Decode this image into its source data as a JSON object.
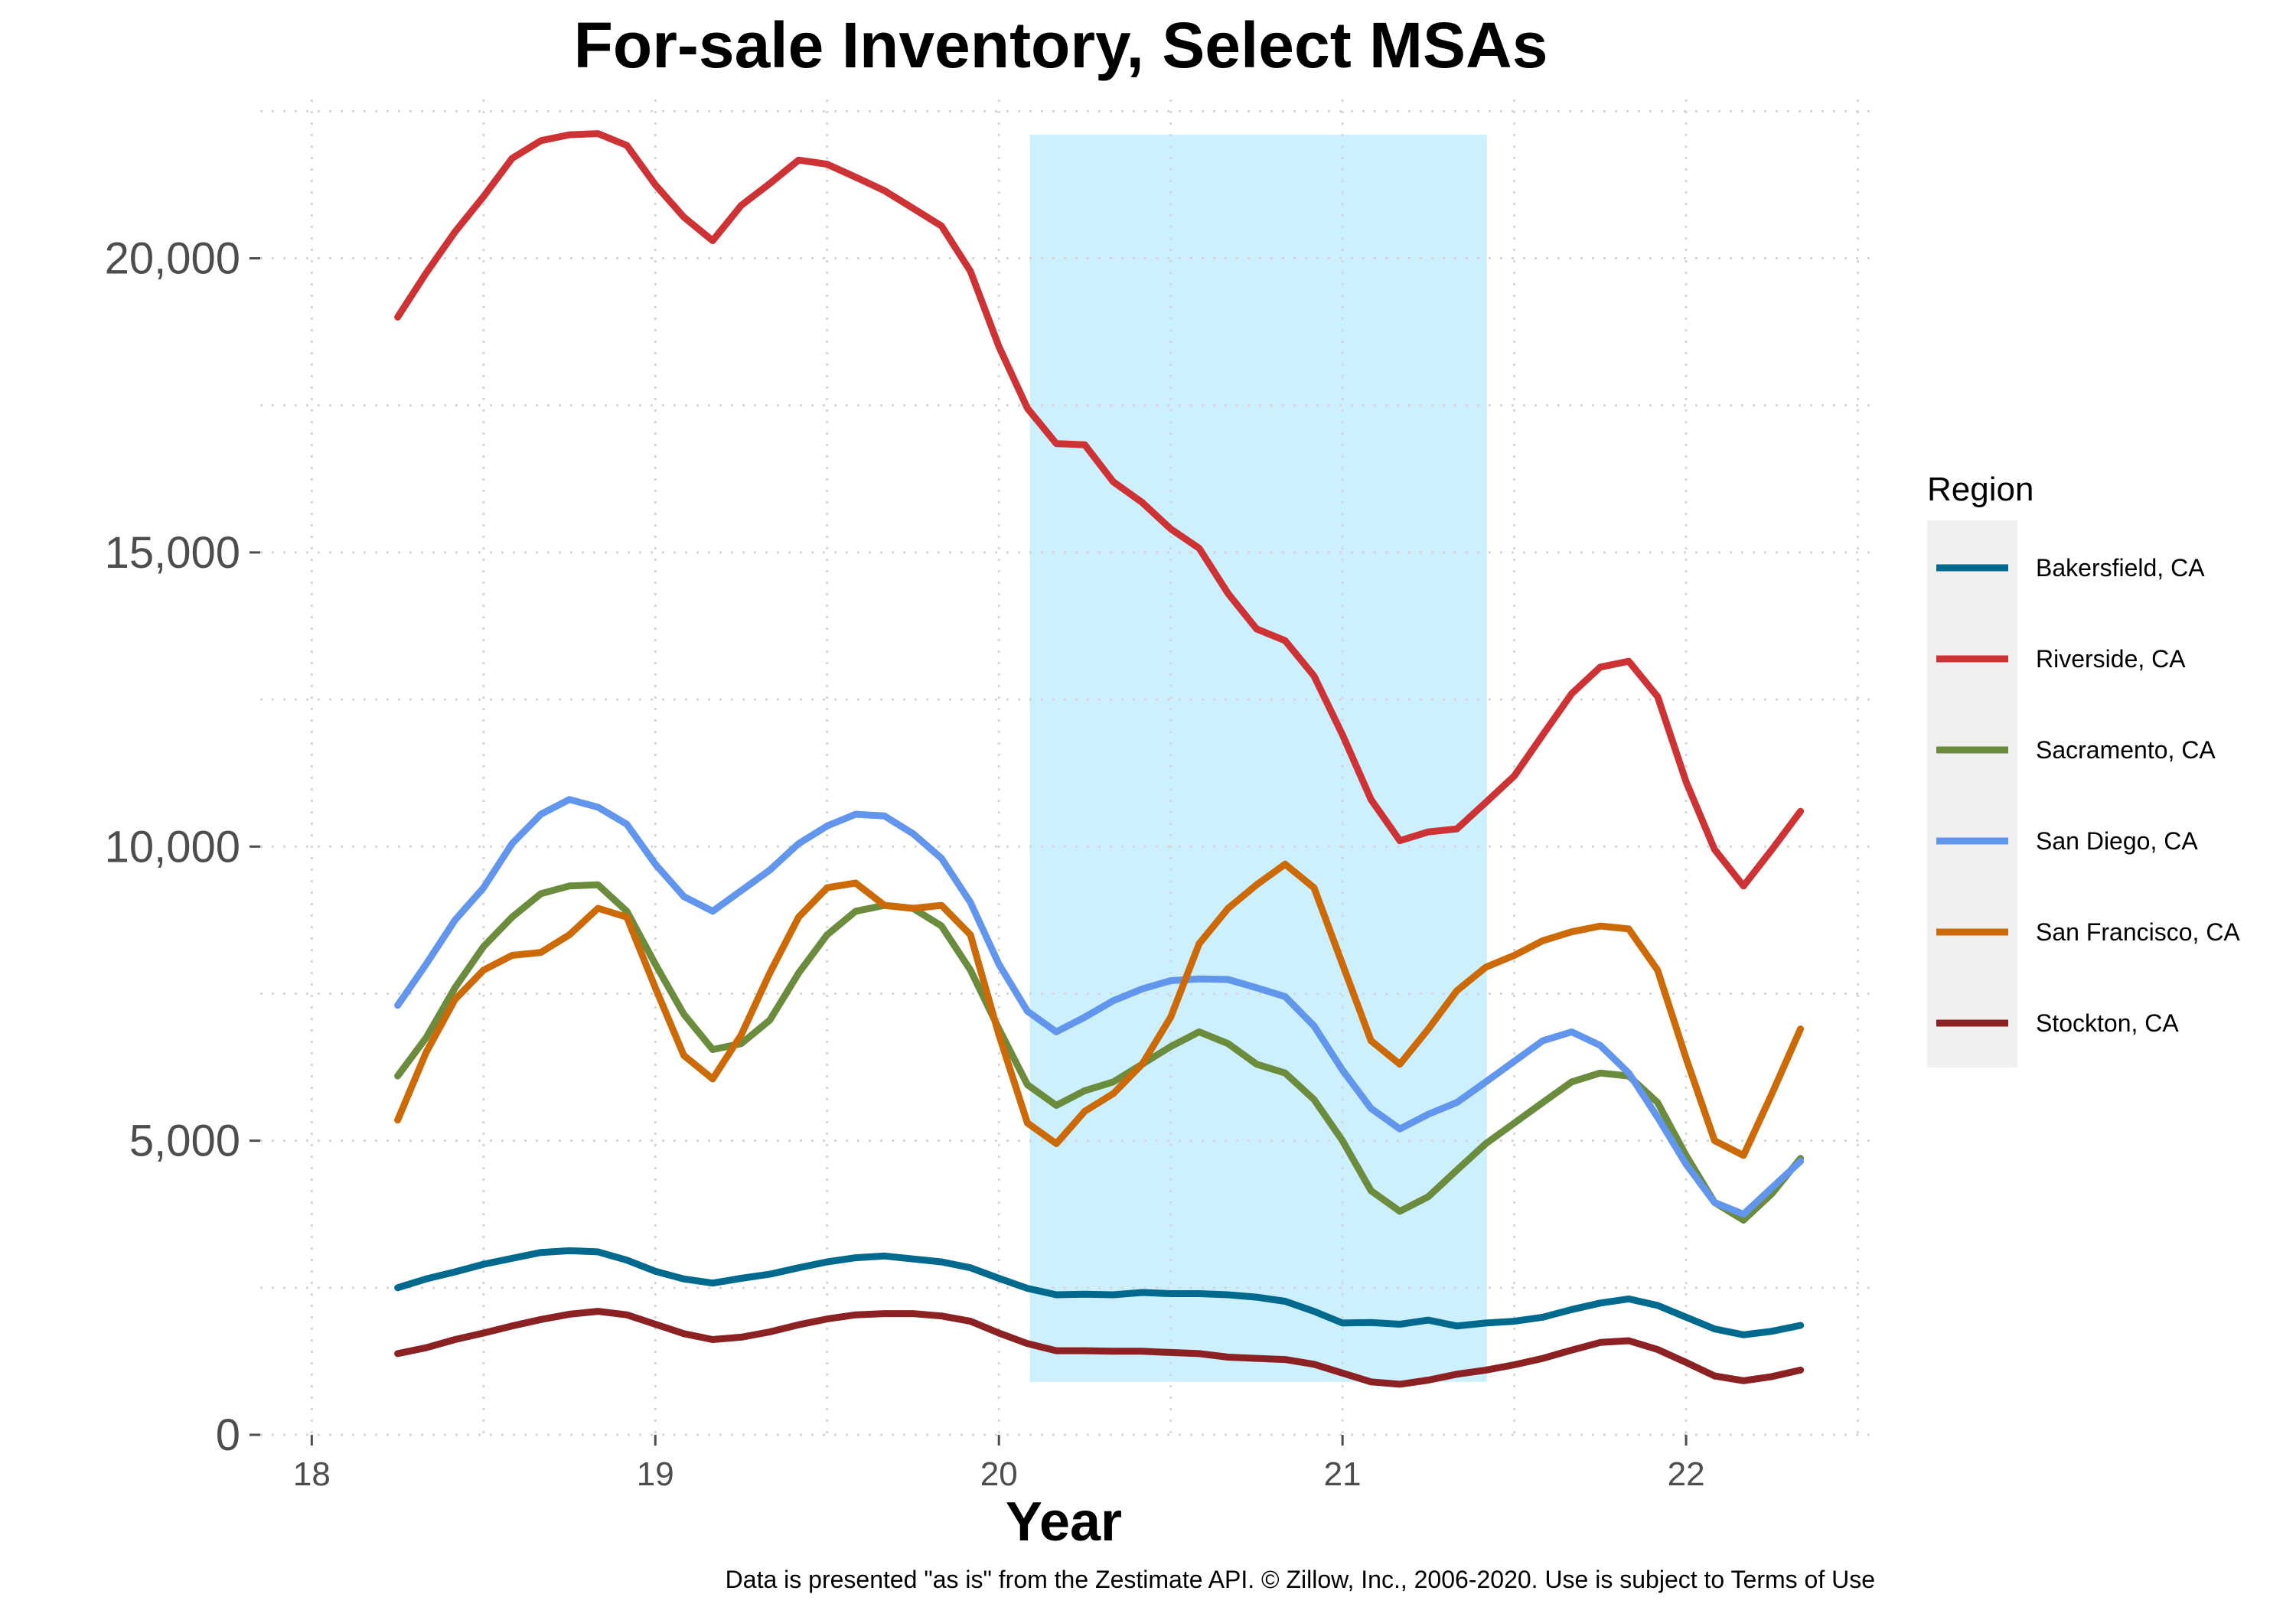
{
  "chart_data": {
    "type": "line",
    "title": "For-sale Inventory, Select MSAs",
    "xlabel": "Year",
    "ylabel": "",
    "xlim": [
      17.85,
      22.55
    ],
    "ylim": [
      0,
      22700
    ],
    "x_ticks": [
      18,
      19,
      20,
      21,
      22
    ],
    "x_tick_labels": [
      "18",
      "19",
      "20",
      "21",
      "22"
    ],
    "y_ticks": [
      0,
      5000,
      10000,
      15000,
      20000
    ],
    "y_tick_labels": [
      "0",
      "5,000",
      "10,000",
      "15,000",
      "20,000"
    ],
    "grid": true,
    "legend": {
      "title": "Region",
      "position": "right"
    },
    "shaded_region": {
      "x_start": 20.09,
      "x_end": 21.42,
      "y_start": 900,
      "y_end": 22100,
      "color": "#ccf0fd"
    },
    "caption": "Data is presented \"as is\" from the Zestimate API. © Zillow, Inc., 2006-2020. Use is subject to Terms of Use",
    "x": [
      18.25,
      18.333,
      18.417,
      18.5,
      18.583,
      18.667,
      18.75,
      18.833,
      18.917,
      19.0,
      19.083,
      19.167,
      19.25,
      19.333,
      19.417,
      19.5,
      19.583,
      19.667,
      19.75,
      19.833,
      19.917,
      20.0,
      20.083,
      20.167,
      20.25,
      20.333,
      20.417,
      20.5,
      20.583,
      20.667,
      20.75,
      20.833,
      20.917,
      21.0,
      21.083,
      21.167,
      21.25,
      21.333,
      21.417,
      21.5,
      21.583,
      21.667,
      21.75,
      21.833,
      21.917,
      22.0,
      22.083,
      22.167,
      22.25,
      22.333
    ],
    "series": [
      {
        "name": "Bakersfield, CA",
        "color": "#006a8e",
        "values": [
          2500,
          2650,
          2770,
          2900,
          3000,
          3100,
          3130,
          3110,
          2970,
          2780,
          2650,
          2580,
          2660,
          2730,
          2840,
          2940,
          3010,
          3040,
          2990,
          2940,
          2840,
          2660,
          2490,
          2380,
          2390,
          2380,
          2420,
          2400,
          2400,
          2380,
          2340,
          2270,
          2100,
          1900,
          1910,
          1880,
          1950,
          1850,
          1900,
          1930,
          2000,
          2130,
          2240,
          2310,
          2200,
          2000,
          1800,
          1700,
          1760,
          1860
        ]
      },
      {
        "name": "Riverside, CA",
        "color": "#cd3334",
        "values": [
          19000,
          19750,
          20450,
          21050,
          21700,
          22000,
          22100,
          22120,
          21920,
          21250,
          20700,
          20300,
          20900,
          21270,
          21670,
          21600,
          21380,
          21150,
          20850,
          20550,
          19780,
          18500,
          17450,
          16850,
          16830,
          16200,
          15850,
          15400,
          15070,
          14300,
          13700,
          13500,
          12900,
          11900,
          10800,
          10100,
          10250,
          10300,
          10750,
          11200,
          11900,
          12600,
          13050,
          13150,
          12550,
          11100,
          9950,
          9330,
          9950,
          10600
        ]
      },
      {
        "name": "Sacramento, CA",
        "color": "#6c8c3d",
        "values": [
          6100,
          6750,
          7600,
          8300,
          8800,
          9200,
          9330,
          9350,
          8900,
          8000,
          7150,
          6550,
          6650,
          7050,
          7850,
          8500,
          8900,
          9000,
          8950,
          8650,
          7900,
          6900,
          5950,
          5600,
          5850,
          6000,
          6300,
          6600,
          6850,
          6650,
          6300,
          6150,
          5700,
          5000,
          4150,
          3800,
          4050,
          4500,
          4950,
          5300,
          5650,
          6000,
          6150,
          6100,
          5650,
          4750,
          3950,
          3650,
          4100,
          4700
        ]
      },
      {
        "name": "San Diego, CA",
        "color": "#6295ec",
        "values": [
          7300,
          8000,
          8750,
          9300,
          10050,
          10550,
          10800,
          10670,
          10380,
          9700,
          9150,
          8900,
          9250,
          9600,
          10050,
          10350,
          10550,
          10520,
          10220,
          9800,
          9050,
          8000,
          7200,
          6850,
          7100,
          7380,
          7580,
          7720,
          7750,
          7740,
          7600,
          7450,
          6950,
          6200,
          5550,
          5200,
          5450,
          5650,
          6000,
          6350,
          6700,
          6850,
          6620,
          6150,
          5400,
          4600,
          3950,
          3750,
          4200,
          4650
        ]
      },
      {
        "name": "San Francisco, CA",
        "color": "#cc6a08",
        "values": [
          5350,
          6500,
          7400,
          7900,
          8150,
          8200,
          8500,
          8950,
          8800,
          7600,
          6450,
          6050,
          6800,
          7850,
          8800,
          9300,
          9380,
          9000,
          8950,
          9000,
          8500,
          6800,
          5300,
          4950,
          5500,
          5800,
          6300,
          7100,
          8350,
          8950,
          9350,
          9700,
          9300,
          8000,
          6700,
          6300,
          6900,
          7550,
          7950,
          8150,
          8400,
          8550,
          8650,
          8600,
          7900,
          6400,
          5000,
          4750,
          5800,
          6900
        ]
      },
      {
        "name": "Stockton, CA",
        "color": "#8b2122",
        "values": [
          1380,
          1480,
          1620,
          1730,
          1850,
          1960,
          2050,
          2100,
          2040,
          1880,
          1720,
          1620,
          1660,
          1750,
          1870,
          1970,
          2040,
          2060,
          2060,
          2020,
          1930,
          1730,
          1550,
          1430,
          1430,
          1420,
          1420,
          1400,
          1380,
          1320,
          1300,
          1280,
          1200,
          1050,
          900,
          860,
          930,
          1030,
          1100,
          1190,
          1300,
          1440,
          1570,
          1600,
          1450,
          1230,
          1000,
          920,
          990,
          1100
        ]
      }
    ]
  }
}
